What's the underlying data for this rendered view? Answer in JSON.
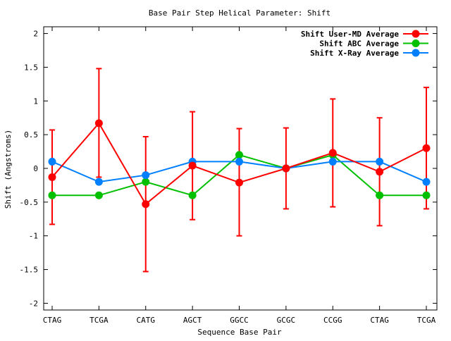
{
  "chart_data": {
    "type": "line",
    "title": "Base Pair Step Helical Parameter: Shift",
    "xlabel": "Sequence Base Pair",
    "ylabel": "Shift (Angstroms)",
    "categories": [
      "CTAG",
      "TCGA",
      "CATG",
      "AGCT",
      "GGCC",
      "GCGC",
      "CCGG",
      "CTAG",
      "TCGA"
    ],
    "ylim": [
      -2.1,
      2.1
    ],
    "yticks": [
      {
        "value": 2,
        "label": "2"
      },
      {
        "value": 1.5,
        "label": "1.5"
      },
      {
        "value": 1,
        "label": "1"
      },
      {
        "value": 0.5,
        "label": "0.5"
      },
      {
        "value": 0,
        "label": "0"
      },
      {
        "value": -0.5,
        "label": "-0.5"
      },
      {
        "value": -1,
        "label": "-1"
      },
      {
        "value": -1.5,
        "label": "-1.5"
      },
      {
        "value": -2,
        "label": "-2"
      }
    ],
    "grid": false,
    "legend_position": "top-right",
    "series": [
      {
        "name": "Shift User-MD Average",
        "color": "#ff0000",
        "values": [
          -0.13,
          0.67,
          -0.53,
          0.04,
          -0.21,
          0.0,
          0.23,
          -0.05,
          0.3
        ],
        "error_low": [
          -0.83,
          -0.13,
          -1.53,
          -0.76,
          -1.0,
          -0.6,
          -0.57,
          -0.85,
          -0.6
        ],
        "error_high": [
          0.57,
          1.48,
          0.47,
          0.84,
          0.59,
          0.6,
          1.03,
          0.75,
          1.2
        ]
      },
      {
        "name": "Shift ABC Average",
        "color": "#00c000",
        "values": [
          -0.4,
          -0.4,
          -0.2,
          -0.4,
          0.2,
          0.0,
          0.2,
          -0.4,
          -0.4
        ]
      },
      {
        "name": "Shift X-Ray Average",
        "color": "#0080ff",
        "values": [
          0.1,
          -0.2,
          -0.1,
          0.1,
          0.1,
          0.0,
          0.1,
          0.1,
          -0.2
        ]
      }
    ]
  }
}
